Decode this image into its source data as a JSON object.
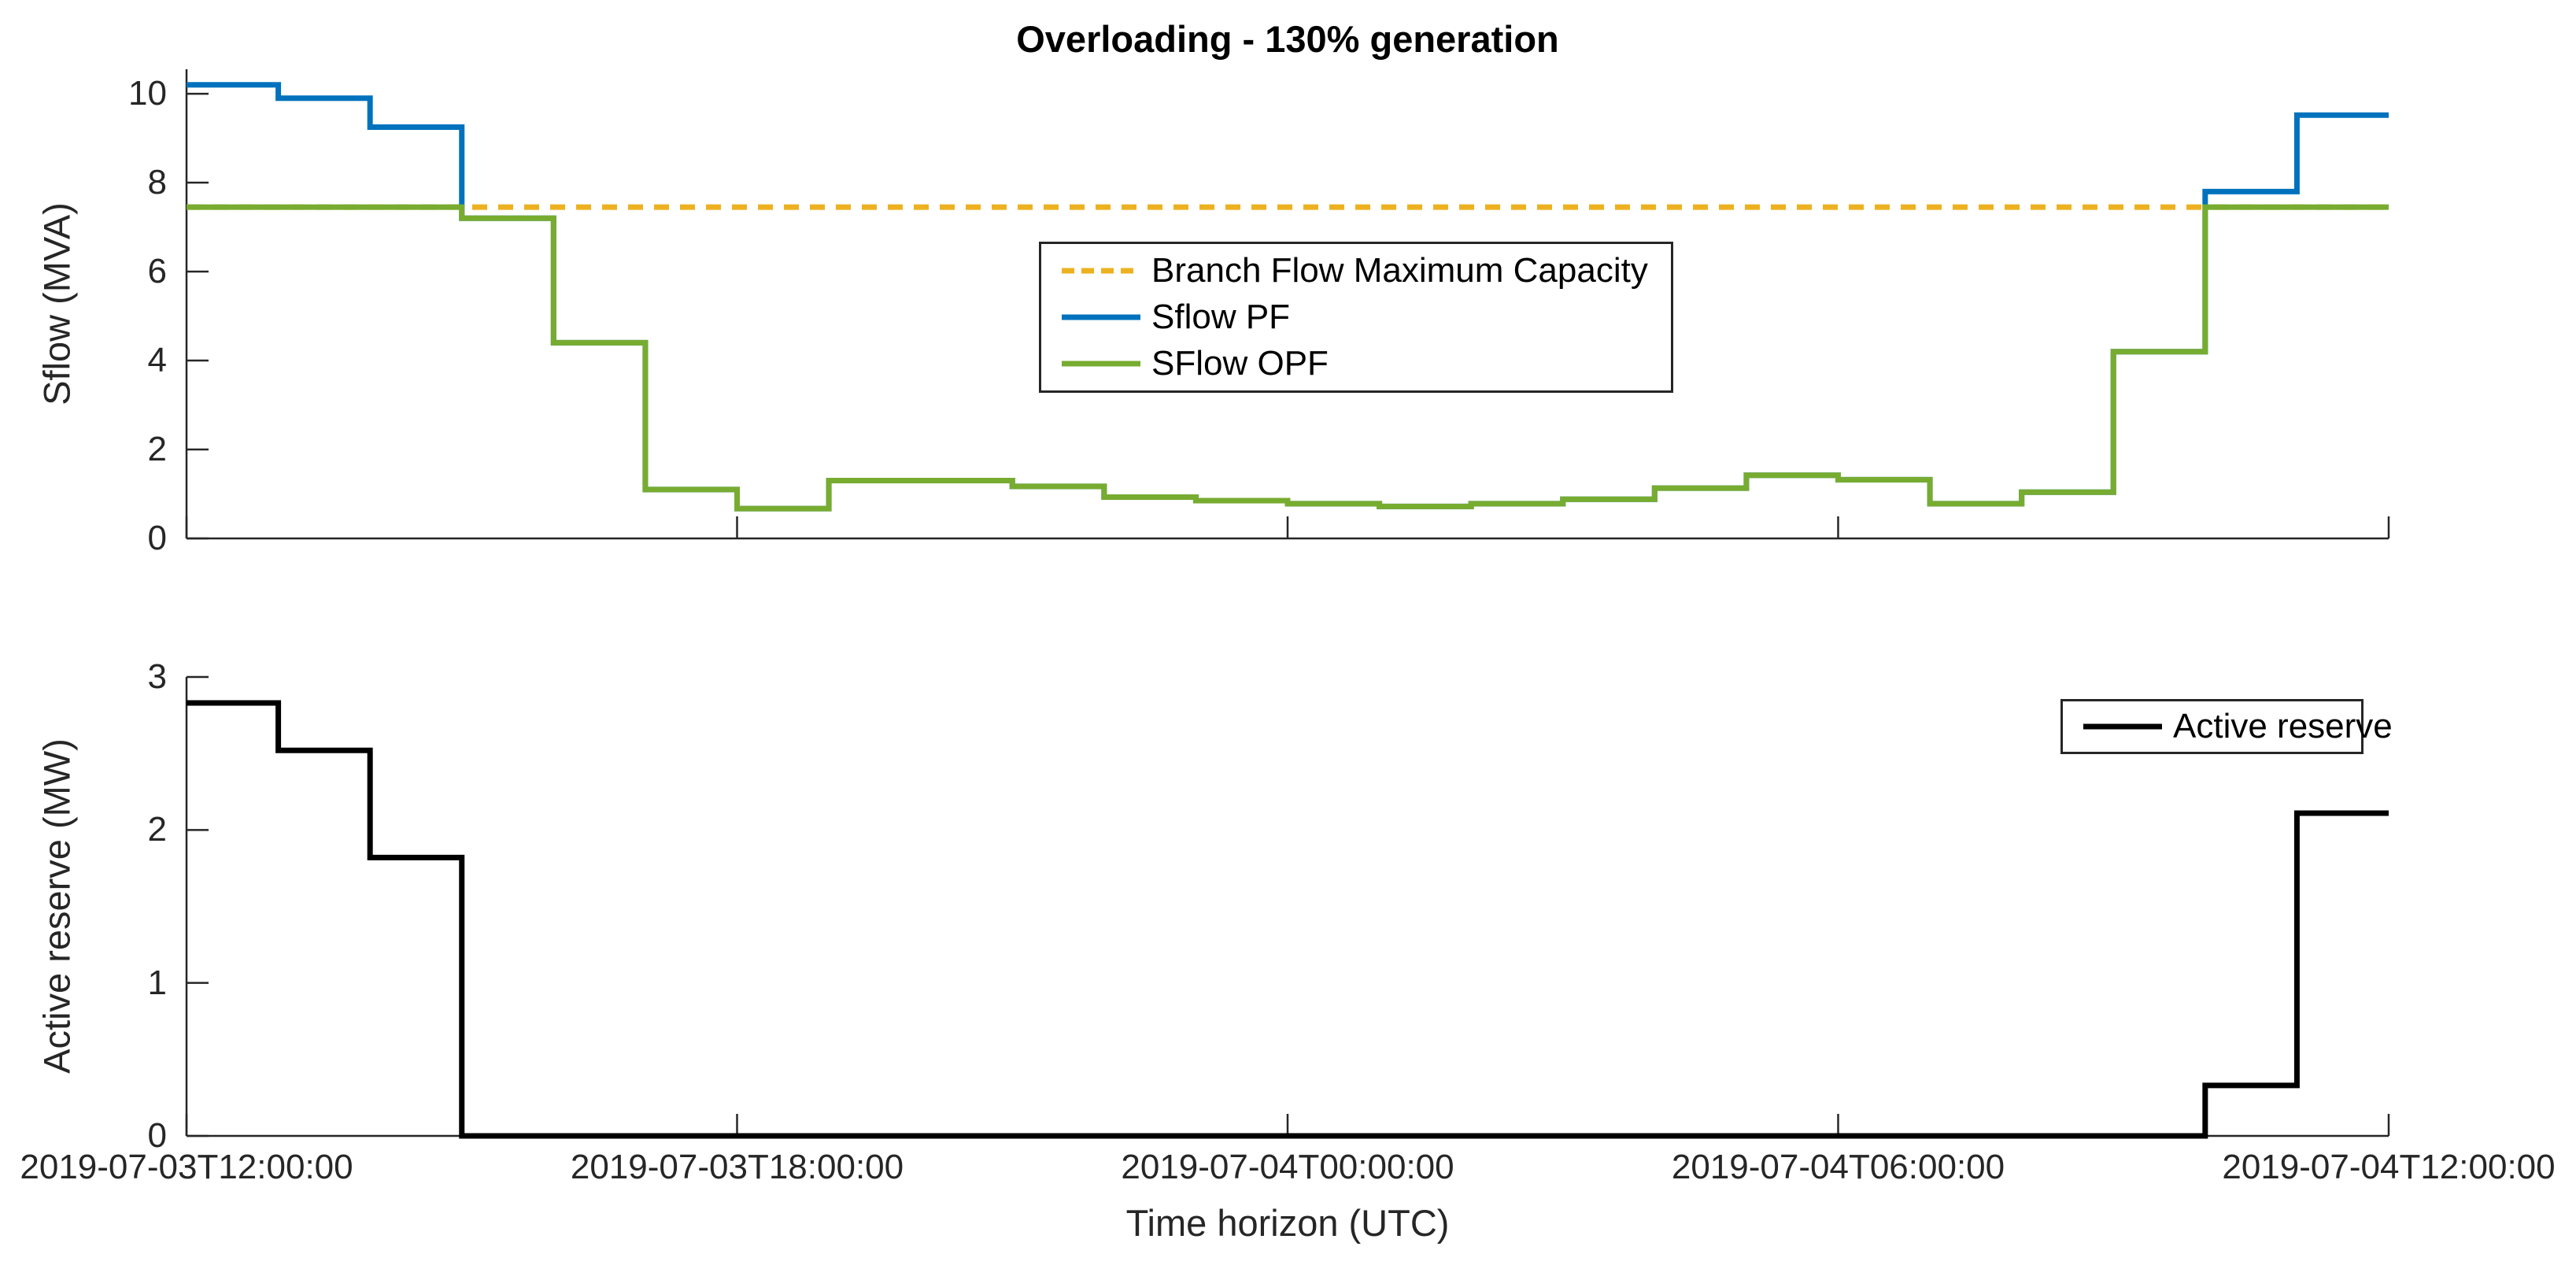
{
  "title": "Overloading - 130% generation",
  "colors": {
    "pf_blue": "#0072BD",
    "opf_green": "#77AC30",
    "capacity_orange": "#EDB120",
    "reserve_black": "#000000",
    "axis_gray": "#262626"
  },
  "top_plot": {
    "ylabel": "Sflow (MVA)",
    "ytick_labels": [
      "0",
      "2",
      "4",
      "6",
      "8",
      "10"
    ],
    "yticks": [
      0,
      2,
      4,
      6,
      8,
      10
    ],
    "ylim": [
      0,
      10.55
    ],
    "legend": {
      "items": [
        {
          "label": "Branch Flow Maximum Capacity",
          "style": "dashed",
          "color": "#EDB120"
        },
        {
          "label": "Sflow PF",
          "style": "solid",
          "color": "#0072BD"
        },
        {
          "label": "SFlow OPF",
          "style": "solid",
          "color": "#77AC30"
        }
      ]
    }
  },
  "bottom_plot": {
    "ylabel": "Active reserve (MW)",
    "ytick_labels": [
      "0",
      "1",
      "2",
      "3"
    ],
    "yticks": [
      0,
      1,
      2,
      3
    ],
    "ylim": [
      0,
      3
    ],
    "legend": {
      "items": [
        {
          "label": "Active reserve",
          "style": "solid",
          "color": "#000000"
        }
      ]
    }
  },
  "xaxis": {
    "label": "Time horizon (UTC)",
    "tick_labels": [
      "2019-07-03T12:00:00",
      "2019-07-03T18:00:00",
      "2019-07-04T00:00:00",
      "2019-07-04T06:00:00",
      "2019-07-04T12:00:00"
    ],
    "tick_hours": [
      0,
      6,
      12,
      18,
      24
    ],
    "range_hours": [
      0,
      24
    ]
  },
  "chart_data": [
    {
      "type": "line",
      "subplot": "top",
      "title": "Overloading - 130% generation",
      "xlabel": "",
      "ylabel": "Sflow (MVA)",
      "ylim": [
        0,
        10.55
      ],
      "grid": false,
      "legend_position": "upper-middle-right-inside",
      "x_start": "2019-07-03T12:00:00",
      "x_step_hours": 1,
      "n_steps": 24,
      "step_mode": "stairs-hourly",
      "series": [
        {
          "name": "Branch Flow Maximum Capacity",
          "color": "#EDB120",
          "dashed": true,
          "values": [
            7.45,
            7.45,
            7.45,
            7.45,
            7.45,
            7.45,
            7.45,
            7.45,
            7.45,
            7.45,
            7.45,
            7.45,
            7.45,
            7.45,
            7.45,
            7.45,
            7.45,
            7.45,
            7.45,
            7.45,
            7.45,
            7.45,
            7.45,
            7.45
          ]
        },
        {
          "name": "Sflow PF",
          "color": "#0072BD",
          "dashed": false,
          "values": [
            10.2,
            9.9,
            9.25,
            7.2,
            4.4,
            1.1,
            0.67,
            1.3,
            1.3,
            1.17,
            0.93,
            0.85,
            0.78,
            0.72,
            0.78,
            0.88,
            1.13,
            1.42,
            1.32,
            0.78,
            1.04,
            4.2,
            7.8,
            9.52
          ]
        },
        {
          "name": "SFlow OPF",
          "color": "#77AC30",
          "dashed": false,
          "values": [
            7.45,
            7.45,
            7.45,
            7.2,
            4.4,
            1.1,
            0.67,
            1.3,
            1.3,
            1.17,
            0.93,
            0.85,
            0.78,
            0.72,
            0.78,
            0.88,
            1.13,
            1.42,
            1.32,
            0.78,
            1.04,
            4.2,
            7.45,
            7.45
          ]
        }
      ]
    },
    {
      "type": "line",
      "subplot": "bottom",
      "title": "",
      "xlabel": "Time horizon (UTC)",
      "ylabel": "Active reserve (MW)",
      "ylim": [
        0,
        3
      ],
      "grid": false,
      "legend_position": "upper-right-inside",
      "x_start": "2019-07-03T12:00:00",
      "x_step_hours": 1,
      "n_steps": 24,
      "step_mode": "stairs-hourly",
      "series": [
        {
          "name": "Active reserve",
          "color": "#000000",
          "dashed": false,
          "values": [
            2.83,
            2.52,
            1.82,
            0,
            0,
            0,
            0,
            0,
            0,
            0,
            0,
            0,
            0,
            0,
            0,
            0,
            0,
            0,
            0,
            0,
            0,
            0,
            0.33,
            2.11
          ]
        }
      ]
    }
  ]
}
